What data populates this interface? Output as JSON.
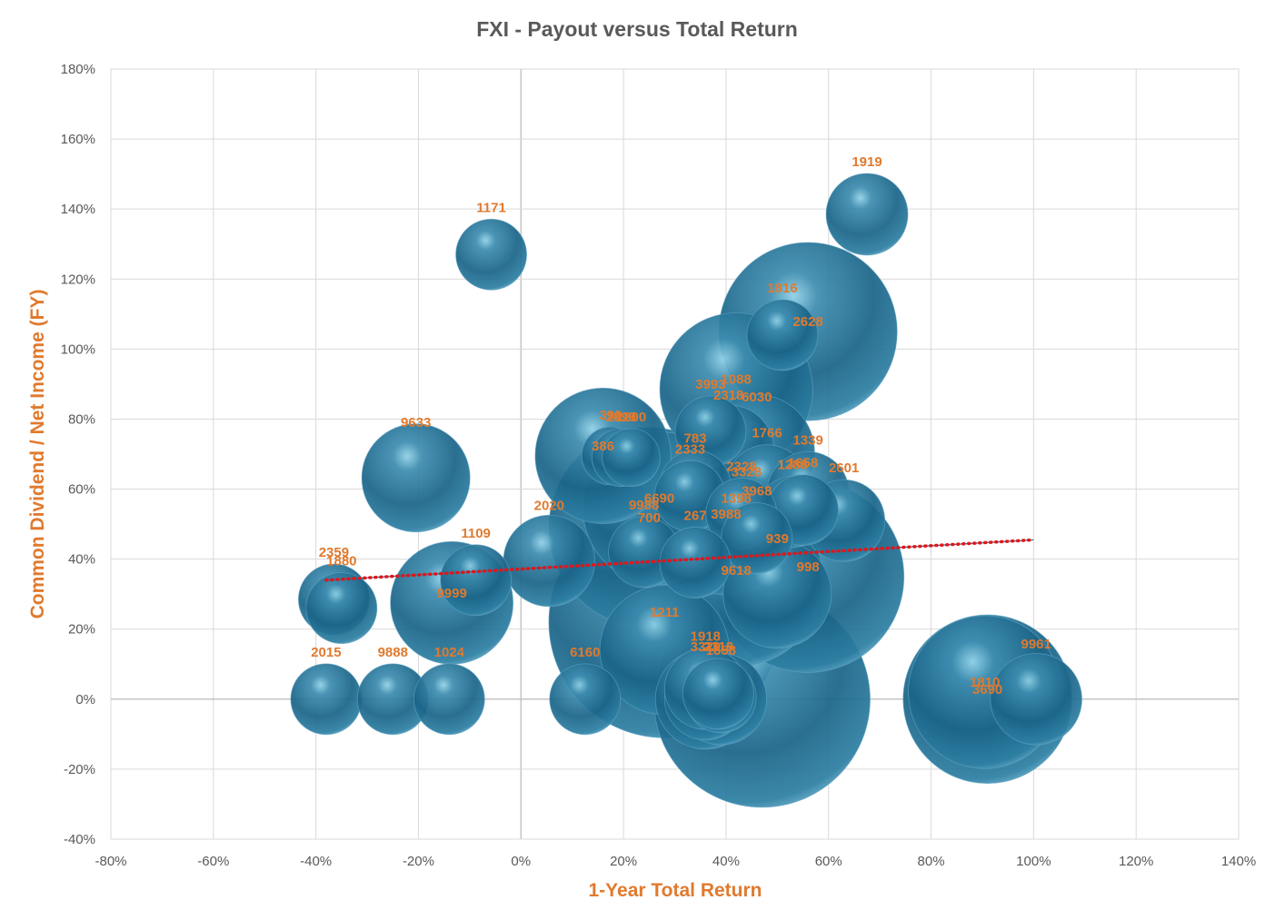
{
  "colors": {
    "bubble_fill": "#1F6E91",
    "bubble_dark": "#0E4660",
    "bubble_light": "#7FC3DC",
    "label": "#E07A2E",
    "trendline": "#E0161B",
    "title": "#595959",
    "grid": "#D9D9D9"
  },
  "chart_data": {
    "type": "bubble",
    "title": "FXI - Payout versus Total Return",
    "xlabel": "1-Year Total Return",
    "ylabel": "Common Dividend / Net Income (FY)",
    "xlim": [
      -0.8,
      1.4
    ],
    "ylim": [
      -0.4,
      1.8
    ],
    "x_ticks": [
      -0.8,
      -0.6,
      -0.4,
      -0.2,
      0,
      0.2,
      0.4,
      0.6,
      0.8,
      1.0,
      1.2,
      1.4
    ],
    "y_ticks": [
      -0.4,
      -0.2,
      0,
      0.2,
      0.4,
      0.6,
      0.8,
      1.0,
      1.2,
      1.4,
      1.6,
      1.8
    ],
    "x_tick_labels": [
      "-80%",
      "-60%",
      "-40%",
      "-20%",
      "0%",
      "20%",
      "40%",
      "60%",
      "80%",
      "100%",
      "120%",
      "140%"
    ],
    "y_tick_labels": [
      "-40%",
      "-20%",
      "0%",
      "20%",
      "40%",
      "60%",
      "80%",
      "100%",
      "120%",
      "140%",
      "160%",
      "180%"
    ],
    "grid": true,
    "legend": "none",
    "trendline": {
      "type": "linear",
      "x_range": [
        -0.38,
        1.0
      ],
      "y_at_start": 0.34,
      "y_at_end": 0.455
    },
    "points": [
      {
        "label": "1919",
        "x": 0.675,
        "y": 1.385,
        "size": 4
      },
      {
        "label": "1171",
        "x": -0.058,
        "y": 1.27,
        "size": 3
      },
      {
        "label": "2628",
        "x": 0.56,
        "y": 1.05,
        "size": 19
      },
      {
        "label": "1816",
        "x": 0.51,
        "y": 1.04,
        "size": 3
      },
      {
        "label": "1088",
        "x": 0.42,
        "y": 0.885,
        "size": 14
      },
      {
        "label": "386",
        "x": 0.16,
        "y": 0.695,
        "size": 11
      },
      {
        "label": "390",
        "x": 0.175,
        "y": 0.695,
        "size": 2
      },
      {
        "label": "2899",
        "x": 0.195,
        "y": 0.69,
        "size": 2
      },
      {
        "label": "1800",
        "x": 0.215,
        "y": 0.69,
        "size": 2
      },
      {
        "label": "3993",
        "x": 0.37,
        "y": 0.765,
        "size": 3
      },
      {
        "label": "6030",
        "x": 0.46,
        "y": 0.705,
        "size": 8
      },
      {
        "label": "2318",
        "x": 0.405,
        "y": 0.71,
        "size": 5
      },
      {
        "label": "9633",
        "x": -0.205,
        "y": 0.632,
        "size": 7
      },
      {
        "label": "783",
        "x": 0.34,
        "y": 0.61,
        "size": 3
      },
      {
        "label": "1766",
        "x": 0.48,
        "y": 0.61,
        "size": 4
      },
      {
        "label": "2333",
        "x": 0.33,
        "y": 0.58,
        "size": 3
      },
      {
        "label": "1398",
        "x": 0.42,
        "y": 0.545,
        "size": 12
      },
      {
        "label": "6690",
        "x": 0.27,
        "y": 0.545,
        "size": 14
      },
      {
        "label": "1339",
        "x": 0.56,
        "y": 0.59,
        "size": 4
      },
      {
        "label": "1288",
        "x": 0.53,
        "y": 0.535,
        "size": 3
      },
      {
        "label": "2601",
        "x": 0.63,
        "y": 0.51,
        "size": 4
      },
      {
        "label": "3328",
        "x": 0.44,
        "y": 0.515,
        "size": 3
      },
      {
        "label": "1658",
        "x": 0.55,
        "y": 0.54,
        "size": 3
      },
      {
        "label": "3988",
        "x": 0.4,
        "y": 0.5,
        "size": 12
      },
      {
        "label": "2328",
        "x": 0.43,
        "y": 0.53,
        "size": 3
      },
      {
        "label": "700",
        "x": 0.25,
        "y": 0.49,
        "size": 24
      },
      {
        "label": "3968",
        "x": 0.46,
        "y": 0.46,
        "size": 3
      },
      {
        "label": "2020",
        "x": 0.055,
        "y": 0.395,
        "size": 5
      },
      {
        "label": "9988",
        "x": 0.24,
        "y": 0.42,
        "size": 3
      },
      {
        "label": "267",
        "x": 0.34,
        "y": 0.39,
        "size": 3
      },
      {
        "label": "998",
        "x": 0.56,
        "y": 0.35,
        "size": 22
      },
      {
        "label": "9618",
        "x": 0.42,
        "y": 0.34,
        "size": 18
      },
      {
        "label": "2359",
        "x": -0.365,
        "y": 0.285,
        "size": 3
      },
      {
        "label": "1880",
        "x": -0.35,
        "y": 0.26,
        "size": 3
      },
      {
        "label": "9999",
        "x": -0.135,
        "y": 0.275,
        "size": 9
      },
      {
        "label": "1109",
        "x": -0.088,
        "y": 0.34,
        "size": 3
      },
      {
        "label": "1211",
        "x": 0.28,
        "y": 0.22,
        "size": 32
      },
      {
        "label": "939",
        "x": 0.5,
        "y": 0.3,
        "size": 7
      },
      {
        "label": "3690",
        "x": 0.91,
        "y": 0.0,
        "size": 17
      },
      {
        "label": "1810",
        "x": 0.905,
        "y": 0.02,
        "size": 14
      },
      {
        "label": "9961",
        "x": 1.005,
        "y": 0.0,
        "size": 5
      },
      {
        "label": "2015",
        "x": -0.38,
        "y": 0.0,
        "size": 3
      },
      {
        "label": "9888",
        "x": -0.25,
        "y": 0.0,
        "size": 3
      },
      {
        "label": "1024",
        "x": -0.14,
        "y": 0.0,
        "size": 3
      },
      {
        "label": "6160",
        "x": 0.125,
        "y": 0.0,
        "size": 3
      },
      {
        "label": "3320",
        "x": 0.36,
        "y": 0.0,
        "size": 4
      },
      {
        "label": "1658",
        "x": 0.39,
        "y": 0.005,
        "size": 3
      },
      {
        "label": "1918",
        "x": 0.36,
        "y": 0.03,
        "size": 4
      },
      {
        "label": "2318",
        "x": 0.385,
        "y": 0.015,
        "size": 3
      },
      {
        "label": "3690 ",
        "x": 0.47,
        "y": 0.0,
        "size": 28
      },
      {
        "label": "1810 ",
        "x": 0.36,
        "y": 0.0,
        "size": 6
      },
      {
        "label": "3968 ",
        "x": 0.28,
        "y": 0.14,
        "size": 10
      },
      {
        "label": "3988 ",
        "x": 0.39,
        "y": 0.0,
        "size": 5
      }
    ]
  }
}
